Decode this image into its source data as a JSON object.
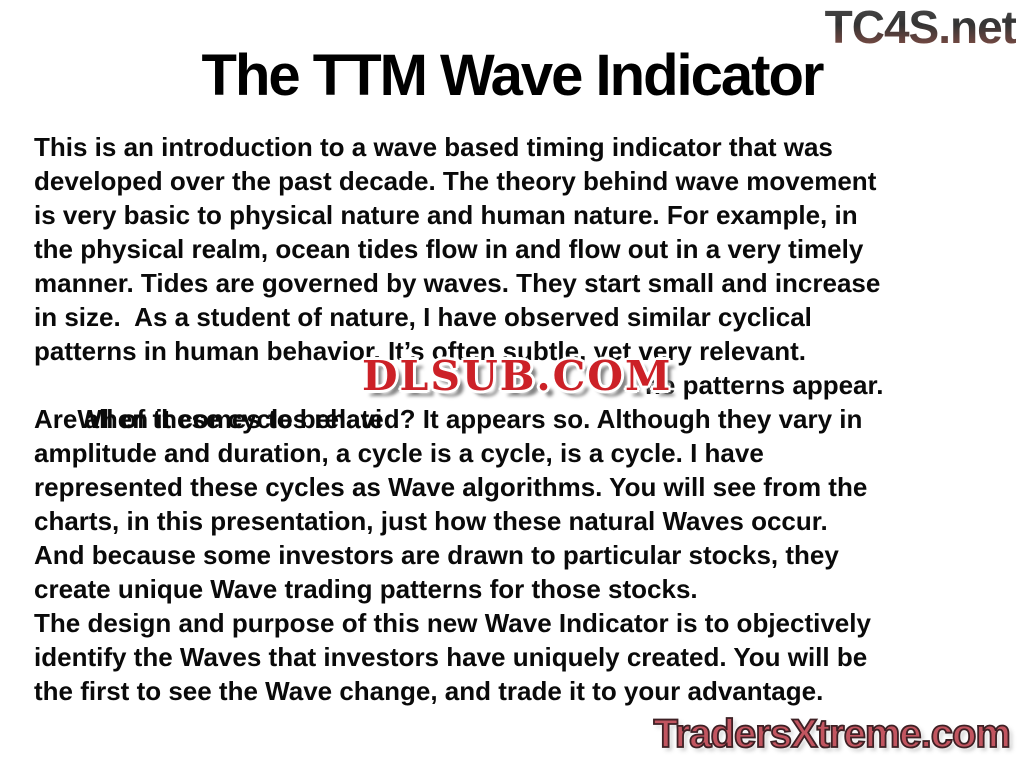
{
  "page": {
    "title": "The TTM Wave Indicator",
    "background_color": "#ffffff",
    "text_color": "#0a0a0a"
  },
  "watermarks": {
    "top_right": "TC4S.net",
    "center": "DLSUB.COM",
    "bottom_right": "TradersXtreme.com",
    "colors": {
      "tc4s_gradient_top": "#3a3a3a",
      "tc4s_gradient_bottom": "#8a5047",
      "dlsub_red": "#cc2127",
      "dlsub_outline": "#ffffff",
      "traders_red": "#c25560",
      "traders_outline": "#3d2024"
    }
  },
  "body": {
    "lines_before": [
      "This is an introduction to a wave based timing indicator that was",
      "developed over the past decade. The theory behind wave movement",
      "is very basic to physical nature and human nature. For example, in",
      "the physical realm, ocean tides flow in and flow out in a very timely",
      "manner. Tides are governed by waves. They start small and increase",
      "in size.  As a student of nature, I have observed similar cyclical",
      "patterns in human behavior. It’s often subtle, yet very relevant."
    ],
    "obscured_line": {
      "left": "When it comes to behavi",
      "right": "ne patterns appear."
    },
    "lines_after": [
      "Are all of these cycles related? It appears so. Although they vary in",
      "amplitude and duration, a cycle is a cycle, is a cycle. I have",
      "represented these cycles as Wave algorithms. You will see from the",
      "charts, in this presentation, just how these natural Waves occur.",
      "And because some investors are drawn to particular stocks, they",
      "create unique Wave trading patterns for those stocks.",
      "The design and purpose of this new Wave Indicator is to objectively",
      "identify the Waves that investors have uniquely created. You will be",
      "the first to see the Wave change, and trade it to your advantage."
    ]
  }
}
